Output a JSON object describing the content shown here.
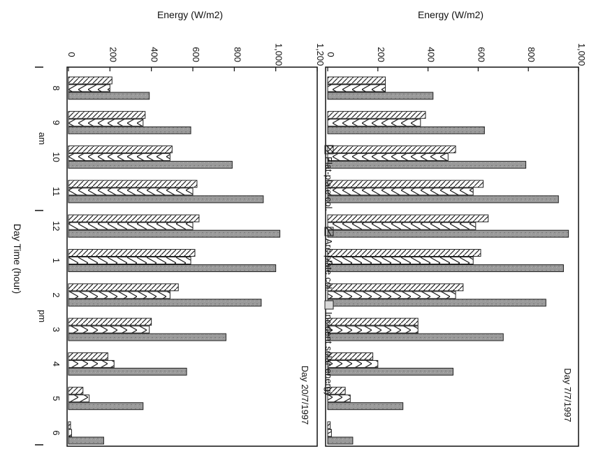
{
  "figure": {
    "shared_xlabel": "Day Time (hour)",
    "am_label": "am",
    "pm_label": "pm"
  },
  "legend": {
    "items": [
      {
        "label": "Flat-plate col.",
        "pattern": "hatch"
      },
      {
        "label": "Arc-plate col.",
        "pattern": "chevron"
      },
      {
        "label": "Incident solar energy",
        "pattern": "gray"
      }
    ]
  },
  "colors": {
    "axis": "#111111",
    "incident_fill": "#9a9a9a",
    "bar_stroke": "#222222"
  },
  "chart_data": [
    {
      "type": "bar",
      "subtitle": "Day 7/7/1997",
      "ylabel": "Energy (W/m2)",
      "xlabel": "Day Time (hour)",
      "ylim": [
        0,
        1000
      ],
      "yticks": [
        "0",
        "200",
        "400",
        "600",
        "800",
        "1,000"
      ],
      "categories": [
        "8",
        "9",
        "10",
        "11",
        "12",
        "1",
        "2",
        "3",
        "4",
        "5",
        "6"
      ],
      "series": [
        {
          "name": "Flat-plate col.",
          "values": [
            230,
            390,
            510,
            620,
            640,
            610,
            540,
            360,
            180,
            70,
            10
          ]
        },
        {
          "name": "Arc-plate col.",
          "values": [
            230,
            370,
            480,
            580,
            590,
            580,
            510,
            360,
            200,
            90,
            15
          ]
        },
        {
          "name": "Incident solar energy",
          "values": [
            420,
            625,
            790,
            920,
            960,
            940,
            870,
            700,
            500,
            300,
            100
          ]
        }
      ]
    },
    {
      "type": "bar",
      "subtitle": "Day 20/7/1997",
      "ylabel": "Energy (W/m2)",
      "xlabel": "Day Time (hour)",
      "ylim": [
        0,
        1200
      ],
      "yticks": [
        "0",
        "200",
        "400",
        "600",
        "800",
        "1,000",
        "1,200"
      ],
      "categories": [
        "8",
        "9",
        "10",
        "11",
        "12",
        "1",
        "2",
        "3",
        "4",
        "5",
        "6"
      ],
      "series": [
        {
          "name": "Flat-plate col.",
          "values": [
            210,
            370,
            500,
            620,
            630,
            610,
            530,
            400,
            190,
            70,
            10
          ]
        },
        {
          "name": "Arc-plate col.",
          "values": [
            200,
            360,
            490,
            600,
            600,
            590,
            490,
            390,
            220,
            100,
            15
          ]
        },
        {
          "name": "Incident solar energy",
          "values": [
            390,
            590,
            790,
            940,
            1020,
            1000,
            930,
            760,
            570,
            360,
            170
          ]
        }
      ]
    }
  ]
}
